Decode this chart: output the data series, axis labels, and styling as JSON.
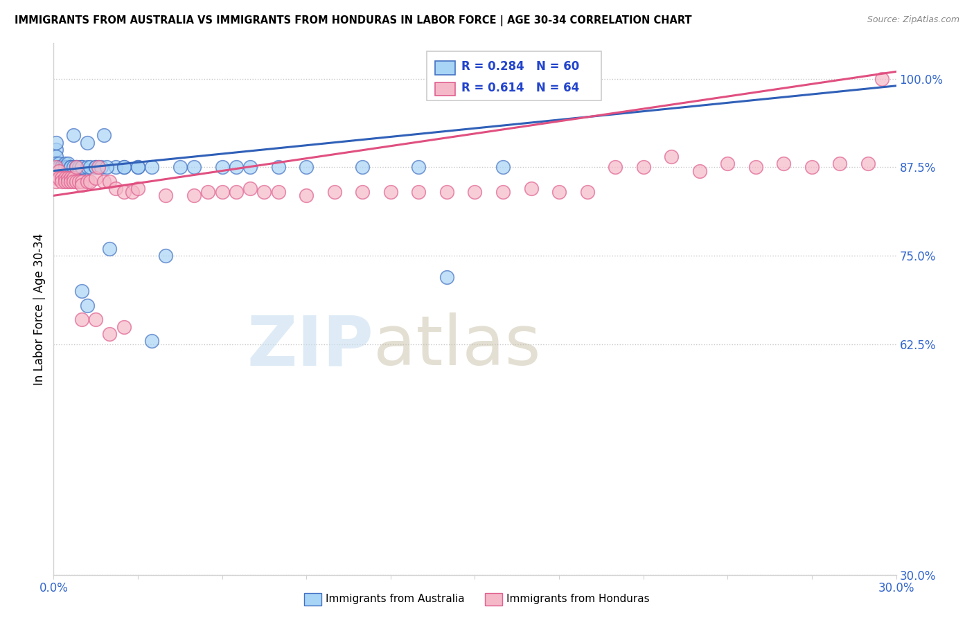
{
  "title": "IMMIGRANTS FROM AUSTRALIA VS IMMIGRANTS FROM HONDURAS IN LABOR FORCE | AGE 30-34 CORRELATION CHART",
  "source": "Source: ZipAtlas.com",
  "ylabel": "In Labor Force | Age 30-34",
  "ylabel_ticks": [
    "100.0%",
    "87.5%",
    "75.0%",
    "62.5%",
    "30.0%"
  ],
  "ylabel_values": [
    1.0,
    0.875,
    0.75,
    0.625,
    0.3
  ],
  "xlim": [
    0.0,
    0.3
  ],
  "ylim": [
    0.3,
    1.05
  ],
  "australia_R": 0.284,
  "australia_N": 60,
  "honduras_R": 0.614,
  "honduras_N": 64,
  "australia_color": "#a8d4f5",
  "honduras_color": "#f5b8c8",
  "australia_edge_color": "#4472c4",
  "honduras_edge_color": "#e06090",
  "australia_line_color": "#3060b8",
  "honduras_line_color": "#e05080",
  "background_color": "#ffffff",
  "legend_text_color": "#2244cc",
  "grid_color": "#bbbbbb",
  "tick_label_color": "#3366cc",
  "aus_line_x0": 0.0,
  "aus_line_y0": 0.87,
  "aus_line_x1": 0.3,
  "aus_line_y1": 0.99,
  "hon_line_x0": 0.0,
  "hon_line_y0": 0.835,
  "hon_line_x1": 0.3,
  "hon_line_y1": 1.01,
  "australia_x": [
    0.001,
    0.001,
    0.001,
    0.001,
    0.001,
    0.002,
    0.002,
    0.002,
    0.002,
    0.003,
    0.003,
    0.003,
    0.003,
    0.004,
    0.004,
    0.004,
    0.005,
    0.005,
    0.005,
    0.006,
    0.006,
    0.007,
    0.007,
    0.008,
    0.008,
    0.009,
    0.009,
    0.01,
    0.01,
    0.012,
    0.012,
    0.013,
    0.015,
    0.016,
    0.018,
    0.02,
    0.022,
    0.025,
    0.03,
    0.035,
    0.04,
    0.045,
    0.05,
    0.06,
    0.065,
    0.07,
    0.08,
    0.09,
    0.11,
    0.13,
    0.14,
    0.16,
    0.01,
    0.012,
    0.015,
    0.017,
    0.019,
    0.025,
    0.03,
    0.035
  ],
  "australia_y": [
    0.9,
    0.89,
    0.91,
    0.875,
    0.88,
    0.875,
    0.88,
    0.87,
    0.875,
    0.875,
    0.875,
    0.875,
    0.875,
    0.88,
    0.875,
    0.875,
    0.875,
    0.875,
    0.88,
    0.875,
    0.875,
    0.92,
    0.875,
    0.875,
    0.875,
    0.87,
    0.875,
    0.875,
    0.875,
    0.91,
    0.875,
    0.875,
    0.875,
    0.875,
    0.92,
    0.76,
    0.875,
    0.875,
    0.875,
    0.875,
    0.75,
    0.875,
    0.875,
    0.875,
    0.875,
    0.875,
    0.875,
    0.875,
    0.875,
    0.875,
    0.72,
    0.875,
    0.7,
    0.68,
    0.875,
    0.875,
    0.875,
    0.875,
    0.875,
    0.63
  ],
  "honduras_x": [
    0.001,
    0.001,
    0.001,
    0.002,
    0.002,
    0.003,
    0.003,
    0.004,
    0.004,
    0.005,
    0.005,
    0.006,
    0.006,
    0.007,
    0.007,
    0.008,
    0.008,
    0.009,
    0.01,
    0.01,
    0.012,
    0.013,
    0.015,
    0.016,
    0.018,
    0.02,
    0.022,
    0.025,
    0.028,
    0.03,
    0.04,
    0.05,
    0.055,
    0.06,
    0.065,
    0.07,
    0.075,
    0.08,
    0.09,
    0.1,
    0.11,
    0.12,
    0.13,
    0.14,
    0.15,
    0.16,
    0.17,
    0.18,
    0.19,
    0.2,
    0.21,
    0.22,
    0.23,
    0.24,
    0.25,
    0.26,
    0.27,
    0.28,
    0.29,
    0.295,
    0.01,
    0.015,
    0.02,
    0.025
  ],
  "honduras_y": [
    0.86,
    0.875,
    0.855,
    0.87,
    0.86,
    0.86,
    0.855,
    0.86,
    0.855,
    0.86,
    0.855,
    0.86,
    0.855,
    0.86,
    0.855,
    0.875,
    0.855,
    0.855,
    0.855,
    0.85,
    0.855,
    0.855,
    0.86,
    0.875,
    0.855,
    0.855,
    0.845,
    0.84,
    0.84,
    0.845,
    0.835,
    0.835,
    0.84,
    0.84,
    0.84,
    0.845,
    0.84,
    0.84,
    0.835,
    0.84,
    0.84,
    0.84,
    0.84,
    0.84,
    0.84,
    0.84,
    0.845,
    0.84,
    0.84,
    0.875,
    0.875,
    0.89,
    0.87,
    0.88,
    0.875,
    0.88,
    0.875,
    0.88,
    0.88,
    1.0,
    0.66,
    0.66,
    0.64,
    0.65
  ]
}
